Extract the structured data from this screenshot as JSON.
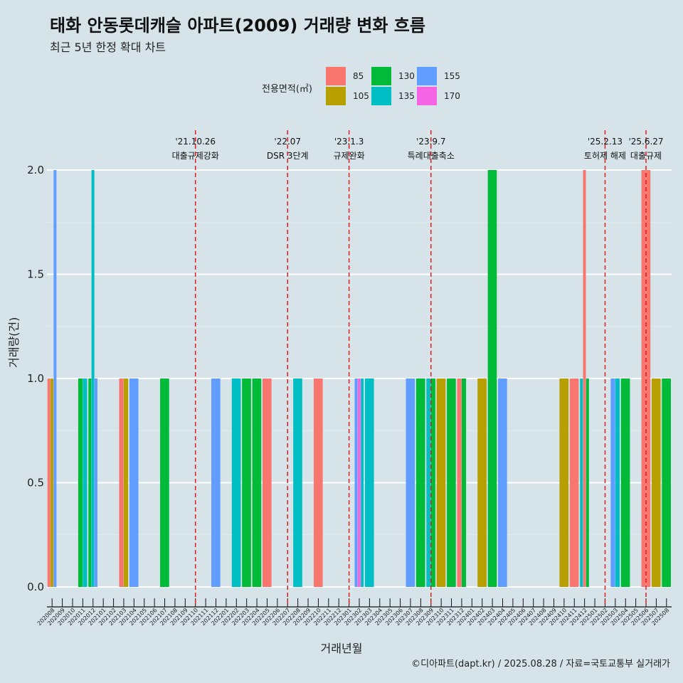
{
  "title": "태화 안동롯데캐슬 아파트(2009) 거래량 변화 흐름",
  "subtitle": "최근 5년 한정 확대 차트",
  "caption": "©디아파트(dapt.kr) / 2025.08.28 / 자료=국토교통부 실거래가",
  "chart_data": {
    "type": "bar",
    "title": "태화 안동롯데캐슬 아파트(2009) 거래량 변화 흐름",
    "xlabel": "거래년월",
    "ylabel": "거래량(건)",
    "ylim": [
      0,
      2.0
    ],
    "yticks": [
      "0.0",
      "0.5",
      "1.0",
      "1.5",
      "2.0"
    ],
    "legend": {
      "title": "전용면적(㎡)",
      "placement": "top-center",
      "items": [
        {
          "name": "85",
          "color": "#F8766D"
        },
        {
          "name": "105",
          "color": "#B79F00"
        },
        {
          "name": "130",
          "color": "#00BA38"
        },
        {
          "name": "135",
          "color": "#00BFC4"
        },
        {
          "name": "155",
          "color": "#619CFF"
        },
        {
          "name": "170",
          "color": "#F564E3"
        }
      ]
    },
    "categories": [
      "202008",
      "202009",
      "202010",
      "202011",
      "202012",
      "202101",
      "202102",
      "202103",
      "202104",
      "202105",
      "202106",
      "202107",
      "202108",
      "202109",
      "202110",
      "202111",
      "202112",
      "202201",
      "202202",
      "202203",
      "202204",
      "202205",
      "202206",
      "202207",
      "202208",
      "202209",
      "202210",
      "202211",
      "202212",
      "202301",
      "202302",
      "202303",
      "202304",
      "202305",
      "202306",
      "202307",
      "202308",
      "202309",
      "202310",
      "202311",
      "202312",
      "202401",
      "202402",
      "202403",
      "202404",
      "202405",
      "202406",
      "202407",
      "202408",
      "202409",
      "202410",
      "202411",
      "202412",
      "202501",
      "202502",
      "202503",
      "202504",
      "202505",
      "202506",
      "202507",
      "202508"
    ],
    "bars": [
      {
        "month": "202008",
        "segments": [
          {
            "area": "85",
            "count": 1
          },
          {
            "area": "105",
            "count": 1
          },
          {
            "area": "155",
            "count": 2
          }
        ]
      },
      {
        "month": "202011",
        "segments": [
          {
            "area": "130",
            "count": 1
          },
          {
            "area": "135",
            "count": 1
          }
        ]
      },
      {
        "month": "202012",
        "segments": [
          {
            "area": "130",
            "count": 1
          },
          {
            "area": "135",
            "count": 2
          },
          {
            "area": "155",
            "count": 1
          }
        ]
      },
      {
        "month": "202103",
        "segments": [
          {
            "area": "85",
            "count": 1
          },
          {
            "area": "105",
            "count": 1
          }
        ]
      },
      {
        "month": "202104",
        "segments": [
          {
            "area": "155",
            "count": 1
          }
        ]
      },
      {
        "month": "202107",
        "segments": [
          {
            "area": "130",
            "count": 1
          }
        ]
      },
      {
        "month": "202112",
        "segments": [
          {
            "area": "155",
            "count": 1
          }
        ]
      },
      {
        "month": "202202",
        "segments": [
          {
            "area": "135",
            "count": 1
          }
        ]
      },
      {
        "month": "202203",
        "segments": [
          {
            "area": "130",
            "count": 1
          }
        ]
      },
      {
        "month": "202204",
        "segments": [
          {
            "area": "130",
            "count": 1
          }
        ]
      },
      {
        "month": "202205",
        "segments": [
          {
            "area": "85",
            "count": 1
          }
        ]
      },
      {
        "month": "202208",
        "segments": [
          {
            "area": "135",
            "count": 1
          }
        ]
      },
      {
        "month": "202210",
        "segments": [
          {
            "area": "85",
            "count": 1
          }
        ]
      },
      {
        "month": "202302",
        "segments": [
          {
            "area": "155",
            "count": 1
          },
          {
            "area": "170",
            "count": 1
          },
          {
            "area": "135",
            "count": 1
          }
        ]
      },
      {
        "month": "202303",
        "segments": [
          {
            "area": "135",
            "count": 1
          }
        ]
      },
      {
        "month": "202307",
        "segments": [
          {
            "area": "155",
            "count": 1
          }
        ]
      },
      {
        "month": "202308",
        "segments": [
          {
            "area": "130",
            "count": 1
          }
        ]
      },
      {
        "month": "202309",
        "segments": [
          {
            "area": "135",
            "count": 1
          },
          {
            "area": "130",
            "count": 1
          }
        ]
      },
      {
        "month": "202310",
        "segments": [
          {
            "area": "105",
            "count": 1
          }
        ]
      },
      {
        "month": "202311",
        "segments": [
          {
            "area": "130",
            "count": 1
          }
        ]
      },
      {
        "month": "202312",
        "segments": [
          {
            "area": "85",
            "count": 1
          },
          {
            "area": "130",
            "count": 1
          }
        ]
      },
      {
        "month": "202402",
        "segments": [
          {
            "area": "105",
            "count": 1
          }
        ]
      },
      {
        "month": "202403",
        "segments": [
          {
            "area": "130",
            "count": 2
          }
        ]
      },
      {
        "month": "202404",
        "segments": [
          {
            "area": "155",
            "count": 1
          }
        ]
      },
      {
        "month": "202410",
        "segments": [
          {
            "area": "105",
            "count": 1
          }
        ]
      },
      {
        "month": "202411",
        "segments": [
          {
            "area": "85",
            "count": 1
          }
        ]
      },
      {
        "month": "202412",
        "segments": [
          {
            "area": "135",
            "count": 1
          },
          {
            "area": "85",
            "count": 2
          },
          {
            "area": "130",
            "count": 1
          }
        ]
      },
      {
        "month": "202503",
        "segments": [
          {
            "area": "155",
            "count": 1
          },
          {
            "area": "135",
            "count": 1
          }
        ]
      },
      {
        "month": "202504",
        "segments": [
          {
            "area": "130",
            "count": 1
          }
        ]
      },
      {
        "month": "202506",
        "segments": [
          {
            "area": "85",
            "count": 2
          },
          {
            "area": "85",
            "count": 2
          }
        ]
      },
      {
        "month": "202507",
        "segments": [
          {
            "area": "105",
            "count": 1
          }
        ]
      },
      {
        "month": "202508",
        "segments": [
          {
            "area": "130",
            "count": 1
          }
        ]
      }
    ],
    "events": [
      {
        "month": "202110",
        "date": "'21.10.26",
        "label": "대출규제강화"
      },
      {
        "month": "202207",
        "date": "'22.07",
        "label": "DSR 3단계"
      },
      {
        "month": "202301",
        "date": "'23.1.3",
        "label": "규제완화"
      },
      {
        "month": "202309",
        "date": "'23.9.7",
        "label": "특례대출축소"
      },
      {
        "month": "202502",
        "date": "'25.2.13",
        "label": "토허제 해제"
      },
      {
        "month": "202506",
        "date": "'25.6.27",
        "label": "대출규제"
      }
    ],
    "grid": true
  }
}
